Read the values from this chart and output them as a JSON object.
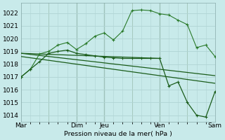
{
  "background_color": "#c8eaea",
  "grid_color": "#b0d4d4",
  "line_dark": "#1a5c1a",
  "line_med": "#2a7a2a",
  "ylabel": "Pression niveau de la mer( hPa )",
  "ylim": [
    1013.5,
    1022.8
  ],
  "yticks": [
    1014,
    1015,
    1016,
    1017,
    1018,
    1019,
    1020,
    1021,
    1022
  ],
  "xtick_labels": [
    "Mar",
    "Dim",
    "Jeu",
    "Ven",
    "Sam"
  ],
  "xtick_positions": [
    0,
    6,
    9,
    15,
    21
  ],
  "vlines_dark": [
    6,
    9,
    15
  ],
  "vlines_light": [
    3,
    12,
    18,
    21
  ],
  "xlim": [
    0,
    21
  ],
  "series1_x": [
    0,
    1,
    2,
    3,
    4,
    5,
    6,
    7,
    8,
    9,
    10,
    11,
    12,
    13,
    14,
    15,
    16,
    17,
    18,
    19,
    20,
    21
  ],
  "series1_y": [
    1017.0,
    1017.6,
    1018.8,
    1019.0,
    1019.5,
    1019.7,
    1019.15,
    1019.6,
    1020.2,
    1020.45,
    1019.9,
    1020.6,
    1022.2,
    1022.25,
    1022.2,
    1021.95,
    1021.85,
    1021.45,
    1021.1,
    1019.3,
    1019.5,
    1018.6
  ],
  "series2_x": [
    0,
    1,
    2,
    3,
    4,
    5,
    6,
    7,
    8,
    9,
    10,
    11,
    12,
    13,
    14,
    15,
    16,
    17,
    18,
    19,
    20,
    21
  ],
  "series2_y": [
    1017.0,
    1017.6,
    1018.2,
    1018.85,
    1019.0,
    1019.1,
    1018.85,
    1018.75,
    1018.65,
    1018.55,
    1018.5,
    1018.45,
    1018.45,
    1018.45,
    1018.45,
    1018.45,
    1016.3,
    1016.6,
    1015.0,
    1014.0,
    1013.85,
    1015.85
  ],
  "trend1_x": [
    0,
    15
  ],
  "trend1_y": [
    1018.85,
    1018.45
  ],
  "trend2_x": [
    0,
    21
  ],
  "trend2_y": [
    1018.85,
    1017.1
  ],
  "trend3_x": [
    0,
    21
  ],
  "trend3_y": [
    1018.6,
    1016.5
  ]
}
